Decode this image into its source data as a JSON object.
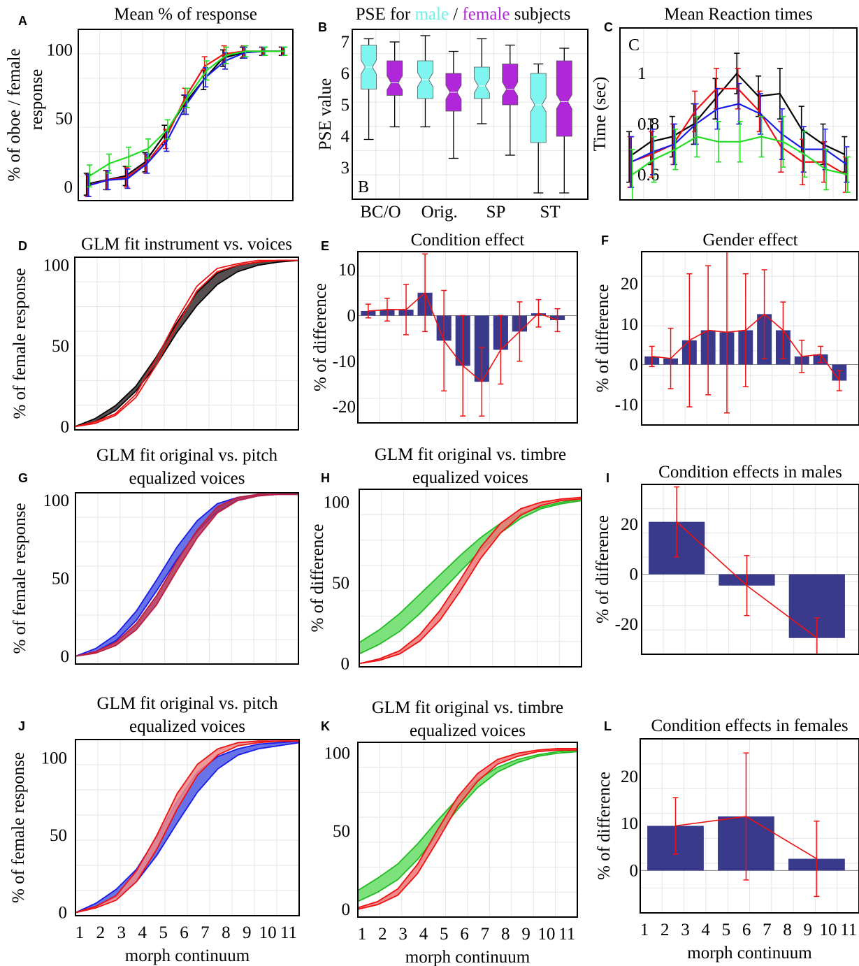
{
  "chart_data": [
    {
      "panel": "A",
      "type": "line",
      "title": "Mean % of response",
      "ylabel": "% of oboe / female response",
      "x": [
        1,
        2,
        3,
        4,
        5,
        6,
        7,
        8,
        9,
        10,
        11
      ],
      "ylim": [
        -10,
        115
      ],
      "yticks": [
        "0",
        "50",
        "100"
      ],
      "yticks_values": [
        0,
        50,
        100
      ],
      "series": [
        {
          "color": "#000000",
          "values": [
            2,
            5,
            8,
            18,
            38,
            60,
            78,
            94,
            98,
            99,
            99
          ],
          "err": [
            8,
            7,
            7,
            7,
            7,
            7,
            7,
            6,
            4,
            3,
            3
          ]
        },
        {
          "color": "#ee1111",
          "values": [
            1,
            5,
            7,
            17,
            35,
            65,
            88,
            97,
            99,
            99,
            99
          ],
          "err": [
            8,
            7,
            7,
            7,
            7,
            7,
            7,
            6,
            4,
            3,
            3
          ]
        },
        {
          "color": "#1a1ae6",
          "values": [
            1,
            5,
            6,
            17,
            33,
            60,
            80,
            92,
            98,
            99,
            99
          ],
          "err": [
            8,
            7,
            7,
            7,
            7,
            7,
            7,
            6,
            4,
            3,
            3
          ]
        },
        {
          "color": "#22dd22",
          "values": [
            8,
            17,
            22,
            28,
            42,
            65,
            85,
            96,
            99,
            99,
            99
          ],
          "err": [
            8,
            7,
            7,
            7,
            7,
            7,
            7,
            6,
            4,
            3,
            3
          ]
        }
      ]
    },
    {
      "panel": "B",
      "type": "box",
      "title_parts": [
        {
          "text": "PSE for ",
          "color": "#000000"
        },
        {
          "text": "male",
          "color": "#6ff0e8"
        },
        {
          "text": " / ",
          "color": "#000000"
        },
        {
          "text": "female",
          "color": "#b026d8"
        },
        {
          "text": " subjects",
          "color": "#000000"
        }
      ],
      "ylabel": "PSE value",
      "inner_label": "B",
      "ylim": [
        2,
        7.4
      ],
      "yticks": [
        "3",
        "4",
        "5",
        "6",
        "7"
      ],
      "yticks_values": [
        3,
        4,
        5,
        6,
        7
      ],
      "categories": [
        "BC/O",
        "Orig.",
        "SP",
        "ST"
      ],
      "boxes": [
        {
          "group": "BC/O",
          "sex": "male",
          "color": "#7ef5ee",
          "min": 3.9,
          "q1": 5.5,
          "median": 6.2,
          "q3": 6.9,
          "max": 7.1
        },
        {
          "group": "BC/O",
          "sex": "female",
          "color": "#b026d8",
          "min": 4.3,
          "q1": 5.3,
          "median": 5.7,
          "q3": 6.4,
          "max": 7.0
        },
        {
          "group": "Orig.",
          "sex": "male",
          "color": "#7ef5ee",
          "min": 4.3,
          "q1": 5.2,
          "median": 5.8,
          "q3": 6.4,
          "max": 7.2
        },
        {
          "group": "Orig.",
          "sex": "female",
          "color": "#b026d8",
          "min": 3.3,
          "q1": 4.8,
          "median": 5.4,
          "q3": 6.0,
          "max": 6.7
        },
        {
          "group": "SP",
          "sex": "male",
          "color": "#7ef5ee",
          "min": 4.4,
          "q1": 5.2,
          "median": 5.6,
          "q3": 6.2,
          "max": 7.1
        },
        {
          "group": "SP",
          "sex": "female",
          "color": "#b026d8",
          "min": 3.4,
          "q1": 5.0,
          "median": 5.5,
          "q3": 6.3,
          "max": 6.9
        },
        {
          "group": "ST",
          "sex": "male",
          "color": "#7ef5ee",
          "min": 2.2,
          "q1": 3.8,
          "median": 5.0,
          "q3": 6.0,
          "max": 6.3
        },
        {
          "group": "ST",
          "sex": "female",
          "color": "#b026d8",
          "min": 2.2,
          "q1": 4.0,
          "median": 5.1,
          "q3": 6.4,
          "max": 6.8
        }
      ]
    },
    {
      "panel": "C",
      "type": "line",
      "title": "Mean Reaction times",
      "ylabel": "Time (sec)",
      "inner_label": "C",
      "x": [
        1,
        2,
        3,
        4,
        5,
        6,
        7,
        8,
        9,
        10,
        11
      ],
      "ylim": [
        0.5,
        1.18
      ],
      "yticks": [
        "0.6",
        "0.8",
        "1"
      ],
      "yticks_values": [
        0.6,
        0.8,
        1.0
      ],
      "series": [
        {
          "color": "#000000",
          "values": [
            0.67,
            0.73,
            0.75,
            0.8,
            0.9,
            1.0,
            0.91,
            0.92,
            0.78,
            0.72,
            0.68
          ],
          "err": [
            0.1,
            0.09,
            0.08,
            0.08,
            0.08,
            0.08,
            0.08,
            0.1,
            0.09,
            0.08,
            0.07
          ]
        },
        {
          "color": "#ee1111",
          "values": [
            0.65,
            0.68,
            0.72,
            0.85,
            0.94,
            0.94,
            0.85,
            0.71,
            0.65,
            0.65,
            0.6
          ],
          "err": [
            0.1,
            0.09,
            0.08,
            0.08,
            0.08,
            0.08,
            0.08,
            0.1,
            0.09,
            0.08,
            0.07
          ]
        },
        {
          "color": "#1a1ae6",
          "values": [
            0.65,
            0.69,
            0.72,
            0.8,
            0.86,
            0.88,
            0.84,
            0.76,
            0.7,
            0.7,
            0.64
          ],
          "err": [
            0.1,
            0.09,
            0.08,
            0.08,
            0.08,
            0.08,
            0.08,
            0.1,
            0.09,
            0.08,
            0.07
          ]
        },
        {
          "color": "#22dd22",
          "values": [
            0.6,
            0.66,
            0.7,
            0.75,
            0.73,
            0.73,
            0.75,
            0.73,
            0.68,
            0.62,
            0.6
          ],
          "err": [
            0.1,
            0.09,
            0.08,
            0.08,
            0.08,
            0.08,
            0.08,
            0.1,
            0.09,
            0.08,
            0.07
          ]
        }
      ]
    },
    {
      "panel": "D",
      "type": "area",
      "title": "GLM fit instrument vs. voices",
      "ylabel": "% of female response",
      "xlim": [
        1,
        12
      ],
      "ylim": [
        -2,
        105
      ],
      "yticks": [
        "0",
        "50",
        "100"
      ],
      "yticks_values": [
        0,
        50,
        100
      ],
      "bands": [
        {
          "fill": "#3a3030",
          "stroke": "#000000",
          "lower": [
            0,
            3,
            10,
            22,
            38,
            58,
            75,
            88,
            96,
            100,
            102,
            103
          ],
          "upper": [
            0,
            5,
            13,
            25,
            43,
            64,
            83,
            95,
            100,
            102,
            103,
            103
          ]
        },
        {
          "fill": "none",
          "stroke": "#ee1111",
          "lower": [
            0,
            2,
            7,
            18,
            38,
            62,
            84,
            96,
            100,
            102,
            103,
            103
          ],
          "upper": [
            0,
            3,
            8,
            20,
            42,
            66,
            87,
            98,
            101,
            103,
            103,
            103
          ]
        }
      ]
    },
    {
      "panel": "E",
      "type": "bar",
      "title": "Condition effect",
      "ylabel": "% of difference",
      "x": [
        1,
        2,
        3,
        4,
        5,
        6,
        7,
        8,
        9,
        10,
        11
      ],
      "values": [
        1,
        1.3,
        1.3,
        5,
        -5.5,
        -11,
        -14.5,
        -7.5,
        -3.5,
        0.5,
        -1
      ],
      "err": [
        1.5,
        2.5,
        5.5,
        8.5,
        11,
        11,
        7.5,
        7.5,
        6.5,
        3,
        2.5
      ],
      "ylim": [
        -23.5,
        14
      ],
      "yticks": [
        "10",
        "0",
        "-10",
        "-20"
      ],
      "yticks_values": [
        10,
        0,
        -10,
        -20
      ],
      "bar_color": "#3a3a8c",
      "line_color": "#ee1111"
    },
    {
      "panel": "F",
      "type": "bar",
      "title": "Gender effect",
      "ylabel": "% of difference",
      "x": [
        1,
        2,
        3,
        4,
        5,
        6,
        7,
        8,
        9,
        10,
        11
      ],
      "values": [
        2,
        1.5,
        6,
        8.5,
        8,
        8.5,
        12.5,
        8.5,
        2,
        2.5,
        -4
      ],
      "err": [
        2.5,
        7.5,
        16.5,
        16,
        20,
        14,
        11,
        7,
        4,
        2,
        2.5
      ],
      "ylim": [
        -15,
        28
      ],
      "yticks": [
        "20",
        "10",
        "0",
        "-10"
      ],
      "yticks_values": [
        20,
        10,
        0,
        -10
      ],
      "bar_color": "#3a3a8c",
      "line_color": "#ee1111"
    },
    {
      "panel": "G",
      "type": "area",
      "title": [
        "GLM fit original vs. pitch",
        "equalized voices"
      ],
      "ylabel": "% of female response",
      "xlim": [
        1,
        12
      ],
      "ylim": [
        -5,
        105
      ],
      "yticks": [
        "0",
        "50",
        "100"
      ],
      "yticks_values": [
        0,
        50,
        100
      ],
      "bands": [
        {
          "fill": "#4d5ae6",
          "stroke": "#1a1ae6",
          "lower": [
            0,
            3,
            10,
            23,
            42,
            62,
            80,
            93,
            100,
            103,
            104,
            104
          ],
          "upper": [
            0,
            5,
            14,
            29,
            49,
            70,
            87,
            98,
            102,
            104,
            104,
            104
          ]
        },
        {
          "fill": "#b03058",
          "stroke": "#c02040",
          "lower": [
            0,
            2,
            7,
            17,
            33,
            55,
            76,
            92,
            100,
            103,
            104,
            104
          ],
          "upper": [
            0,
            3,
            9,
            21,
            39,
            61,
            81,
            96,
            102,
            104,
            104,
            104
          ]
        }
      ]
    },
    {
      "panel": "H",
      "type": "area",
      "title": [
        "GLM fit original vs. timbre",
        "equalized voices"
      ],
      "ylabel": "% of difference",
      "xlim": [
        1,
        12
      ],
      "ylim": [
        -2,
        108
      ],
      "yticks": [
        "0",
        "50",
        "100"
      ],
      "yticks_values": [
        0,
        50,
        100
      ],
      "bands": [
        {
          "fill": "#66dd66",
          "stroke": "#22bb22",
          "lower": [
            6,
            12,
            20,
            31,
            44,
            57,
            70,
            81,
            90,
            96,
            99,
            101
          ],
          "upper": [
            13,
            21,
            31,
            43,
            55,
            67,
            78,
            87,
            93,
            97,
            100,
            102
          ]
        },
        {
          "fill": "#ee7777",
          "stroke": "#ee1111",
          "lower": [
            0,
            2,
            6,
            14,
            27,
            45,
            65,
            81,
            92,
            98,
            101,
            102
          ],
          "upper": [
            0,
            3,
            8,
            18,
            33,
            52,
            72,
            87,
            96,
            100,
            102,
            103
          ]
        }
      ]
    },
    {
      "panel": "I",
      "type": "bar",
      "title": "Condition effects in males",
      "ylabel": "% of difference",
      "categories": [
        "1",
        "2",
        "3"
      ],
      "values": [
        21,
        -4.5,
        -25.5
      ],
      "err": [
        14,
        12,
        8
      ],
      "ylim": [
        -32,
        36
      ],
      "yticks": [
        "20",
        "0",
        "-20"
      ],
      "yticks_values": [
        20,
        0,
        -20
      ],
      "bar_color": "#3a3a8c",
      "line_color": "#ee1111"
    },
    {
      "panel": "J",
      "type": "area",
      "title": [
        "GLM fit original vs. pitch",
        "equalized voices"
      ],
      "ylabel": "% of female response",
      "xlabel": "morph continuum",
      "xticks": [
        "1",
        "2",
        "3",
        "4",
        "5",
        "6",
        "7",
        "8",
        "9",
        "10",
        "11"
      ],
      "xlim": [
        1,
        12
      ],
      "ylim": [
        -2,
        112
      ],
      "yticks": [
        "0",
        "50",
        "100"
      ],
      "yticks_values": [
        0,
        50,
        100
      ],
      "bands": [
        {
          "fill": "#4d5ae6",
          "stroke": "#1a1ae6",
          "lower": [
            0,
            4,
            10,
            20,
            37,
            58,
            78,
            93,
            102,
            106,
            108,
            110
          ],
          "upper": [
            0,
            6,
            15,
            28,
            49,
            72,
            91,
            101,
            106,
            109,
            110,
            111
          ]
        },
        {
          "fill": "#f08888",
          "stroke": "#ee1111",
          "lower": [
            0,
            3,
            8,
            20,
            41,
            67,
            89,
            102,
            108,
            110,
            111,
            111
          ],
          "upper": [
            0,
            4,
            11,
            27,
            50,
            77,
            96,
            106,
            110,
            111,
            111,
            111
          ]
        }
      ]
    },
    {
      "panel": "K",
      "type": "area",
      "title": [
        "GLM fit original vs. timbre",
        "equalized voices"
      ],
      "xlabel": "morph continuum",
      "xticks": [
        "1",
        "2",
        "3",
        "4",
        "5",
        "6",
        "7",
        "8",
        "9",
        "10",
        "11"
      ],
      "xlim": [
        1,
        12
      ],
      "ylim": [
        -5,
        107
      ],
      "yticks": [
        "0",
        "50",
        "100"
      ],
      "yticks_values": [
        0,
        50,
        100
      ],
      "bands": [
        {
          "fill": "#66dd66",
          "stroke": "#22bb22",
          "lower": [
            5,
            11,
            19,
            32,
            48,
            64,
            78,
            88,
            94,
            98,
            100,
            101
          ],
          "upper": [
            12,
            20,
            29,
            42,
            57,
            71,
            83,
            91,
            96,
            99,
            101,
            102
          ]
        },
        {
          "fill": "#ee7777",
          "stroke": "#ee1111",
          "lower": [
            0,
            3,
            9,
            23,
            44,
            66,
            82,
            93,
            98,
            101,
            102,
            102
          ],
          "upper": [
            1,
            5,
            13,
            29,
            51,
            72,
            87,
            96,
            100,
            102,
            103,
            103
          ]
        }
      ]
    },
    {
      "panel": "L",
      "type": "bar",
      "title": "Condition effects in females",
      "ylabel": "% of difference",
      "xlabel": "morph continuum",
      "xticks": [
        "1",
        "2",
        "3",
        "4",
        "5",
        "6",
        "7",
        "8",
        "9",
        "10",
        "11"
      ],
      "categories": [
        "1",
        "2",
        "3"
      ],
      "values": [
        9.5,
        11.5,
        2.5
      ],
      "err": [
        6,
        13.5,
        8
      ],
      "ylim": [
        -9,
        28
      ],
      "yticks": [
        "20",
        "10",
        "0"
      ],
      "yticks_values": [
        20,
        10,
        0
      ],
      "bar_color": "#3a3a8c",
      "line_color": "#ee1111"
    }
  ]
}
